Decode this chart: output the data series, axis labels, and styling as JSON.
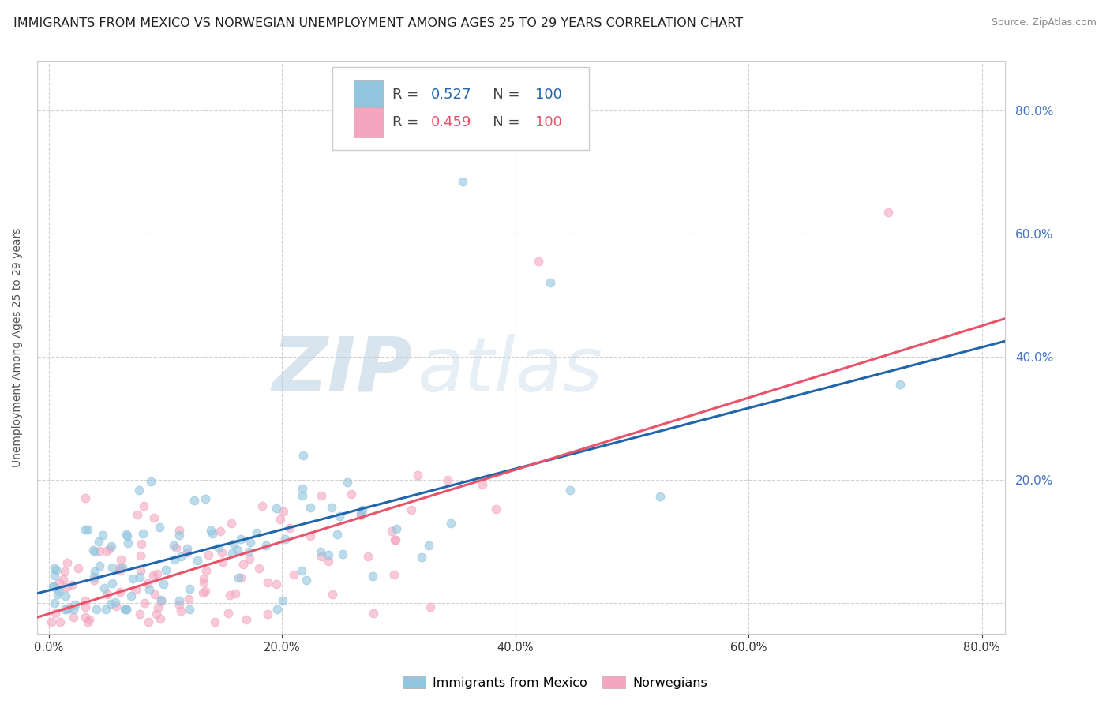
{
  "title": "IMMIGRANTS FROM MEXICO VS NORWEGIAN UNEMPLOYMENT AMONG AGES 25 TO 29 YEARS CORRELATION CHART",
  "source": "Source: ZipAtlas.com",
  "ylabel": "Unemployment Among Ages 25 to 29 years",
  "r_mexico": 0.527,
  "n_mexico": 100,
  "r_norwegian": 0.459,
  "n_norwegian": 100,
  "color_mexico": "#92c5de",
  "color_norwegian": "#f4a6c0",
  "trendline_mexico": "#2166ac",
  "trendline_norwegian": "#e8536a",
  "right_label_color": "#4472c4",
  "ytick_values": [
    0.0,
    0.2,
    0.4,
    0.6,
    0.8
  ],
  "xtick_values": [
    0.0,
    0.2,
    0.4,
    0.6,
    0.8
  ],
  "xlim": [
    -0.01,
    0.82
  ],
  "ylim": [
    -0.05,
    0.88
  ],
  "watermark_zip": "ZIP",
  "watermark_atlas": "atlas",
  "legend_label_mexico": "Immigrants from Mexico",
  "legend_label_norwegian": "Norwegians",
  "background_color": "#ffffff",
  "grid_color": "#cccccc",
  "scatter_size": 60,
  "scatter_alpha": 0.6,
  "scatter_edgewidth": 0.8
}
